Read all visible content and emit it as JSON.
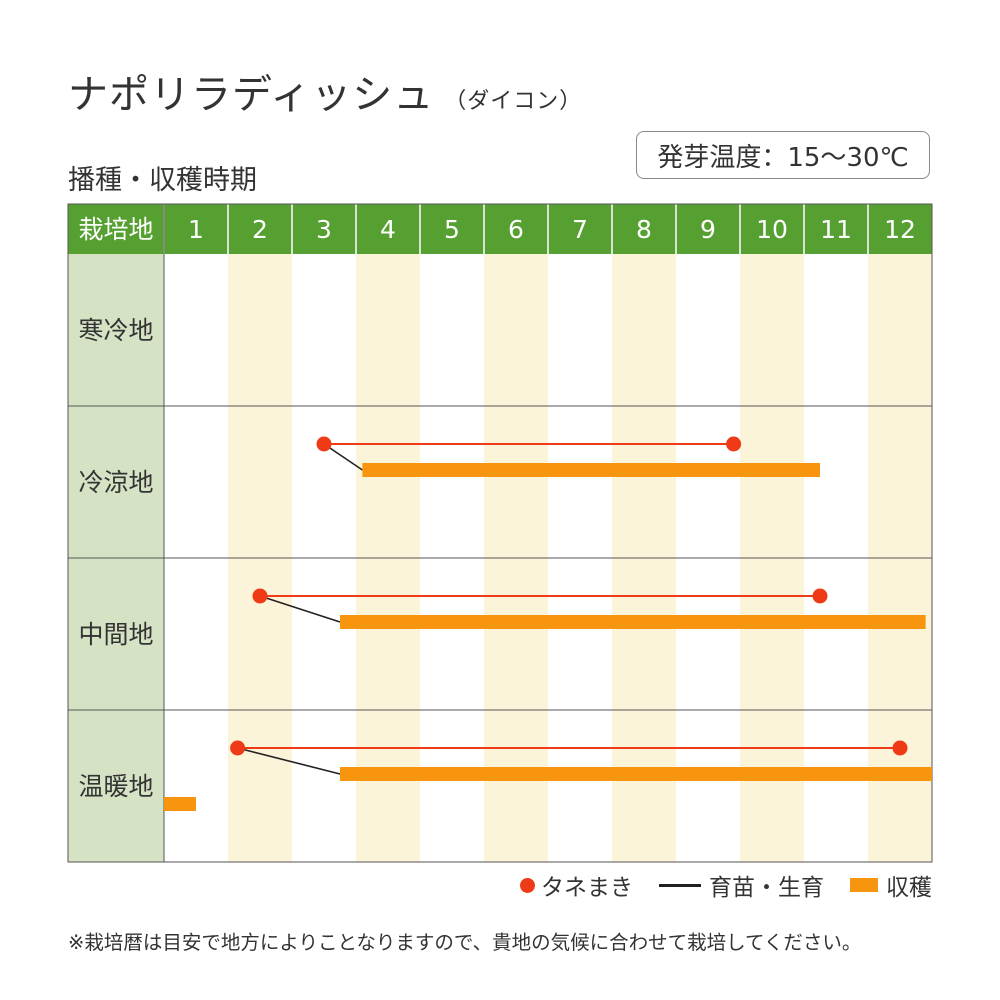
{
  "title": "ナポリラディッシュ",
  "subtitle": "（ダイコン）",
  "section_title": "播種・収穫時期",
  "germination_temp": "発芽温度：15～30℃",
  "chart_data": {
    "type": "gantt",
    "header_label": "栽培地",
    "months": [
      "1",
      "2",
      "3",
      "4",
      "5",
      "6",
      "7",
      "8",
      "9",
      "10",
      "11",
      "12"
    ],
    "rows": [
      {
        "region": "寒冷地",
        "sowing": null,
        "growing": null,
        "harvest": []
      },
      {
        "region": "冷涼地",
        "sowing": [
          3.5,
          9.9
        ],
        "growing": [
          3.5,
          4.1
        ],
        "harvest": [
          [
            4.1,
            11.25
          ]
        ]
      },
      {
        "region": "中間地",
        "sowing": [
          2.5,
          11.25
        ],
        "growing": [
          2.5,
          3.75
        ],
        "harvest": [
          [
            3.75,
            12.9
          ]
        ]
      },
      {
        "region": "温暖地",
        "sowing": [
          2.15,
          12.5
        ],
        "growing": [
          2.15,
          3.75
        ],
        "harvest": [
          [
            1.0,
            1.5
          ],
          [
            3.75,
            13.0
          ]
        ]
      }
    ],
    "legend": [
      "タネまき",
      "育苗・生育",
      "収穫"
    ],
    "colors": {
      "header": "#55a031",
      "region_cell": "#d6e2c4",
      "stripe": "#fcf4d9",
      "sowing": "#ee3a16",
      "growing": "#222222",
      "harvest": "#f7960e"
    }
  },
  "note": "※栽培暦は目安で地方によりことなりますので、貴地の気候に合わせて栽培してください。"
}
